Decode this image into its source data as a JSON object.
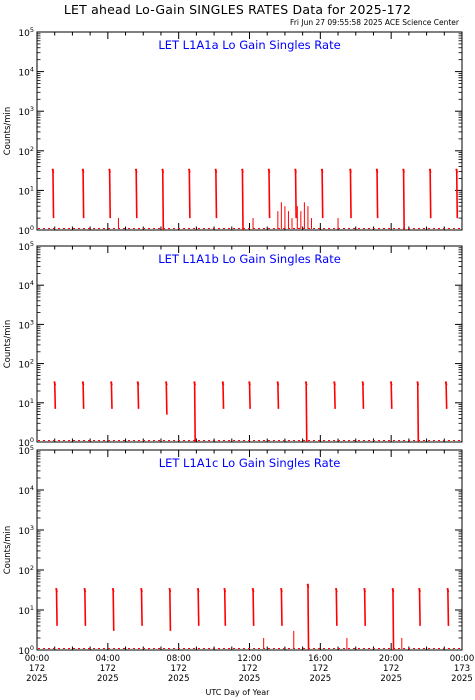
{
  "page": {
    "title": "LET ahead Lo-Gain SINGLES RATES Data for 2025-172",
    "timestamp": "Fri Jun 27 09:55:58 2025 ACE Science Center",
    "xlabel": "UTC Day of Year"
  },
  "colors": {
    "trace": "#ff0000",
    "panel_title": "#0000ff",
    "axes": "#000000"
  },
  "chart_data": [
    {
      "type": "line",
      "title": "LET L1A1a Lo Gain Singles Rate",
      "ylabel": "Counts/min",
      "yscale": "log",
      "ylim": [
        1,
        100000
      ],
      "yticks": [
        "10^0",
        "10^1",
        "10^2",
        "10^3",
        "10^4",
        "10^5"
      ],
      "xlim": [
        0,
        24
      ],
      "x_unit": "hours UTC",
      "series": [
        {
          "spikes": [
            {
              "x": 0.9,
              "ylow": 2,
              "yhigh": 35
            },
            {
              "x": 2.6,
              "ylow": 2,
              "yhigh": 35
            },
            {
              "x": 4.1,
              "ylow": 2,
              "yhigh": 35
            },
            {
              "x": 5.6,
              "ylow": 2,
              "yhigh": 35
            },
            {
              "x": 7.1,
              "ylow": 1,
              "yhigh": 35
            },
            {
              "x": 8.6,
              "ylow": 2,
              "yhigh": 35
            },
            {
              "x": 10.1,
              "ylow": 2,
              "yhigh": 35
            },
            {
              "x": 11.6,
              "ylow": 1,
              "yhigh": 35
            },
            {
              "x": 13.1,
              "ylow": 2,
              "yhigh": 35
            },
            {
              "x": 14.6,
              "ylow": 2,
              "yhigh": 35
            },
            {
              "x": 16.1,
              "ylow": 2,
              "yhigh": 35
            },
            {
              "x": 17.7,
              "ylow": 2,
              "yhigh": 35
            },
            {
              "x": 19.2,
              "ylow": 2,
              "yhigh": 35
            },
            {
              "x": 20.7,
              "ylow": 1,
              "yhigh": 35
            },
            {
              "x": 22.2,
              "ylow": 2,
              "yhigh": 35
            },
            {
              "x": 23.7,
              "ylow": 2,
              "yhigh": 35
            }
          ],
          "noise": [
            {
              "x": 4.6,
              "y": 2
            },
            {
              "x": 12.2,
              "y": 2
            },
            {
              "x": 13.6,
              "y": 3
            },
            {
              "x": 13.8,
              "y": 5
            },
            {
              "x": 14.0,
              "y": 4
            },
            {
              "x": 14.2,
              "y": 3
            },
            {
              "x": 14.4,
              "y": 2
            },
            {
              "x": 14.7,
              "y": 4
            },
            {
              "x": 14.9,
              "y": 3
            },
            {
              "x": 15.1,
              "y": 5
            },
            {
              "x": 15.3,
              "y": 4
            },
            {
              "x": 15.5,
              "y": 2
            },
            {
              "x": 17.0,
              "y": 2
            }
          ]
        }
      ]
    },
    {
      "type": "line",
      "title": "LET L1A1b Lo Gain Singles Rate",
      "ylabel": "Counts/min",
      "yscale": "log",
      "ylim": [
        1,
        100000
      ],
      "yticks": [
        "10^0",
        "10^1",
        "10^2",
        "10^3",
        "10^4",
        "10^5"
      ],
      "xlim": [
        0,
        24
      ],
      "x_unit": "hours UTC",
      "series": [
        {
          "spikes": [
            {
              "x": 1.0,
              "ylow": 7,
              "yhigh": 35
            },
            {
              "x": 2.6,
              "ylow": 7,
              "yhigh": 35
            },
            {
              "x": 4.2,
              "ylow": 7,
              "yhigh": 35
            },
            {
              "x": 5.7,
              "ylow": 7,
              "yhigh": 35
            },
            {
              "x": 7.3,
              "ylow": 5,
              "yhigh": 35
            },
            {
              "x": 8.9,
              "ylow": 1,
              "yhigh": 35
            },
            {
              "x": 10.5,
              "ylow": 7,
              "yhigh": 35
            },
            {
              "x": 12.0,
              "ylow": 7,
              "yhigh": 35
            },
            {
              "x": 13.6,
              "ylow": 7,
              "yhigh": 35
            },
            {
              "x": 15.2,
              "ylow": 1,
              "yhigh": 35
            },
            {
              "x": 16.8,
              "ylow": 7,
              "yhigh": 35
            },
            {
              "x": 18.4,
              "ylow": 7,
              "yhigh": 35
            },
            {
              "x": 20.0,
              "ylow": 7,
              "yhigh": 35
            },
            {
              "x": 21.5,
              "ylow": 1,
              "yhigh": 35
            },
            {
              "x": 23.1,
              "ylow": 7,
              "yhigh": 35
            }
          ],
          "noise": []
        }
      ]
    },
    {
      "type": "line",
      "title": "LET L1A1c Lo Gain Singles Rate",
      "ylabel": "Counts/min",
      "yscale": "log",
      "ylim": [
        1,
        100000
      ],
      "yticks": [
        "10^0",
        "10^1",
        "10^2",
        "10^3",
        "10^4",
        "10^5"
      ],
      "xlim": [
        0,
        24
      ],
      "x_unit": "hours UTC",
      "series": [
        {
          "spikes": [
            {
              "x": 1.1,
              "ylow": 4,
              "yhigh": 35
            },
            {
              "x": 2.7,
              "ylow": 4,
              "yhigh": 35
            },
            {
              "x": 4.3,
              "ylow": 3,
              "yhigh": 35
            },
            {
              "x": 5.9,
              "ylow": 4,
              "yhigh": 35
            },
            {
              "x": 7.5,
              "ylow": 3,
              "yhigh": 35
            },
            {
              "x": 9.1,
              "ylow": 4,
              "yhigh": 35
            },
            {
              "x": 10.6,
              "ylow": 4,
              "yhigh": 35
            },
            {
              "x": 12.2,
              "ylow": 4,
              "yhigh": 35
            },
            {
              "x": 13.8,
              "ylow": 4,
              "yhigh": 35
            },
            {
              "x": 15.3,
              "ylow": 1,
              "yhigh": 45
            },
            {
              "x": 16.9,
              "ylow": 4,
              "yhigh": 35
            },
            {
              "x": 18.5,
              "ylow": 4,
              "yhigh": 35
            },
            {
              "x": 20.1,
              "ylow": 1,
              "yhigh": 35
            },
            {
              "x": 21.6,
              "ylow": 4,
              "yhigh": 35
            },
            {
              "x": 23.2,
              "ylow": 4,
              "yhigh": 35
            }
          ],
          "noise": [
            {
              "x": 12.8,
              "y": 2
            },
            {
              "x": 14.5,
              "y": 3
            },
            {
              "x": 17.5,
              "y": 2
            },
            {
              "x": 20.6,
              "y": 2
            }
          ]
        }
      ]
    }
  ],
  "x_axis": {
    "ticks": [
      {
        "time": "00:00",
        "day": "172",
        "year": "2025"
      },
      {
        "time": "04:00",
        "day": "172",
        "year": "2025"
      },
      {
        "time": "08:00",
        "day": "172",
        "year": "2025"
      },
      {
        "time": "12:00",
        "day": "172",
        "year": "2025"
      },
      {
        "time": "16:00",
        "day": "172",
        "year": "2025"
      },
      {
        "time": "20:00",
        "day": "172",
        "year": "2025"
      },
      {
        "time": "00:00",
        "day": "173",
        "year": "2025"
      }
    ]
  }
}
